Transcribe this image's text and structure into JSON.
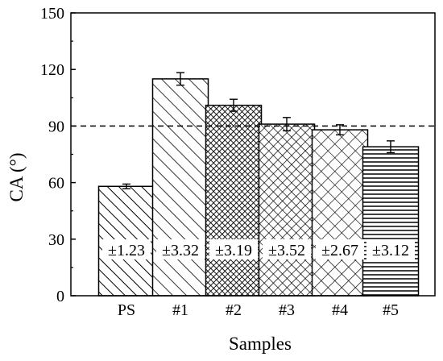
{
  "chart_data": {
    "type": "bar",
    "categories": [
      "PS",
      "#1",
      "#2",
      "#3",
      "#4",
      "#5"
    ],
    "values": [
      58,
      115,
      101,
      91,
      88,
      79
    ],
    "errors": [
      1.23,
      3.32,
      3.19,
      3.52,
      2.67,
      3.12
    ],
    "error_labels": [
      "±1.23",
      "±3.32",
      "±3.19",
      "±3.52",
      "±2.67",
      "±3.12"
    ],
    "patterns": [
      "diagonal-backslash",
      "diagonal-backslash-sparse",
      "dense-crosshatch",
      "crosshatch",
      "crosshatch-sparse",
      "horizontal-lines"
    ],
    "xlabel": "Samples",
    "ylabel": "CA (°)",
    "ylim": [
      0,
      150
    ],
    "yticks": [
      0,
      30,
      60,
      90,
      120,
      150
    ],
    "reference_line": 90,
    "grid": false
  }
}
